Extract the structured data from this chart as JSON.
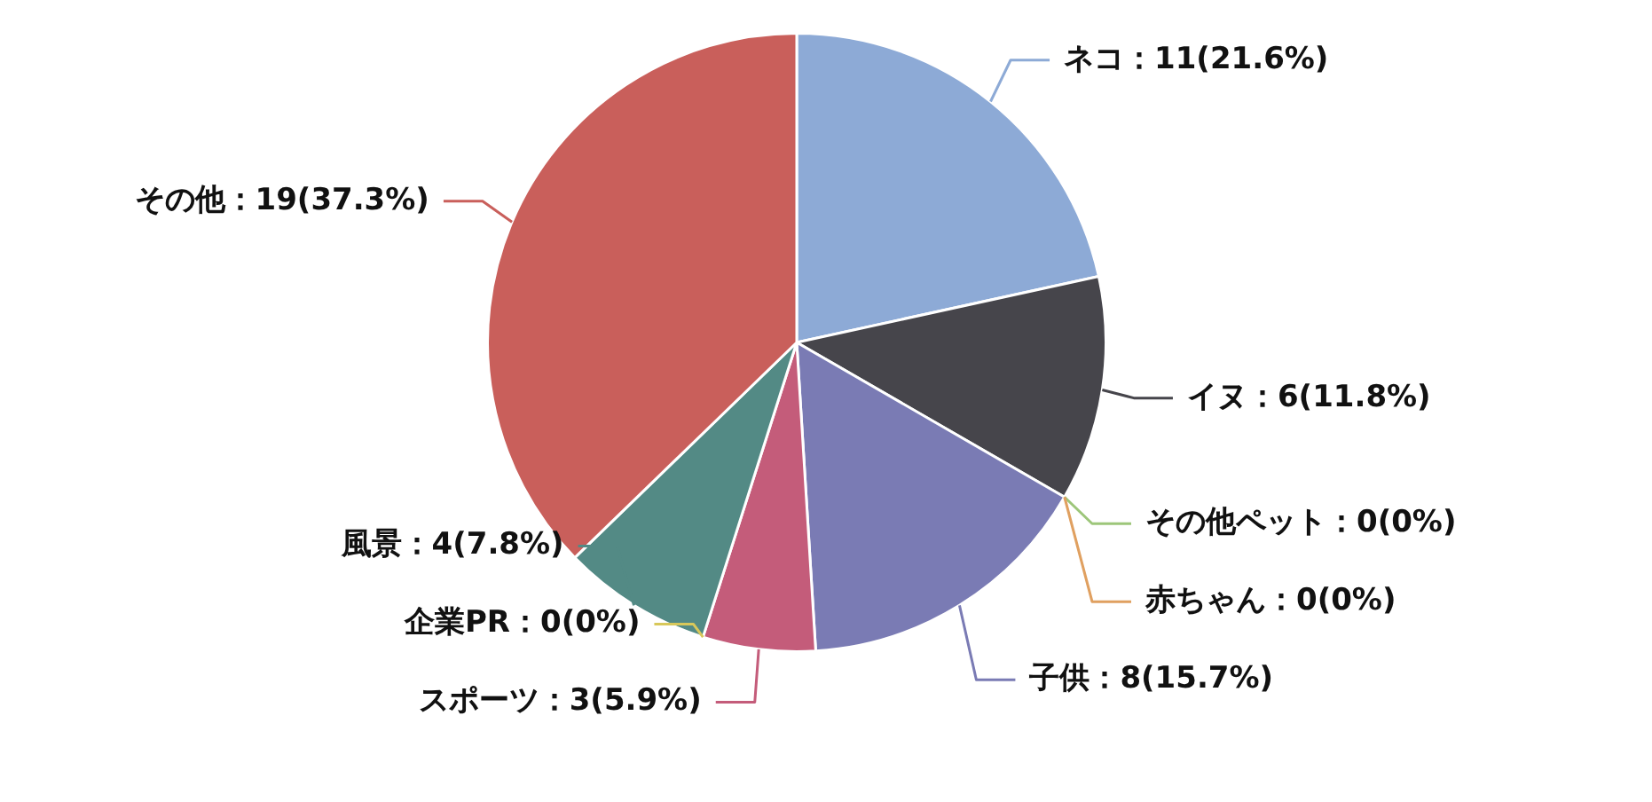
{
  "chart_data": {
    "type": "pie",
    "categories": [
      "ネコ：11(21.6%)",
      "イヌ：6(11.8%)",
      "その他ペット：0(0%)",
      "赤ちゃん：0(0%)",
      "子供：8(15.7%)",
      "スポーツ：3(5.9%)",
      "企業PR：0(0%)",
      "風景：4(7.8%)",
      "その他：19(37.3%)"
    ],
    "values": [
      11,
      6,
      0,
      0,
      8,
      3,
      0,
      4,
      19
    ],
    "colors": [
      "#8daad6",
      "#46454b",
      "#9dc67a",
      "#e0a060",
      "#7a7bb4",
      "#c45c7a",
      "#d8c85a",
      "#538a85",
      "#c95f5b"
    ]
  }
}
